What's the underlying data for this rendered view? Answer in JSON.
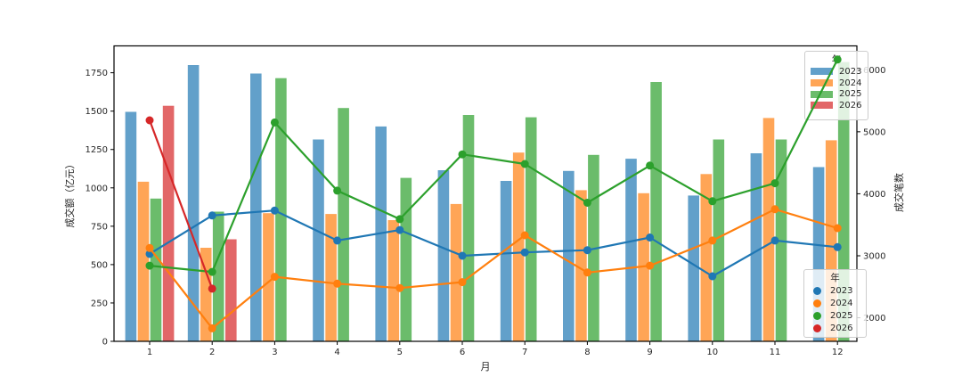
{
  "chart_data": {
    "type": "bar+line-dual-axis",
    "title": "",
    "xlabel": "月",
    "y_left": {
      "label": "成交额（亿元）",
      "ticks": [
        0,
        250,
        500,
        750,
        1000,
        1250,
        1500,
        1750
      ],
      "range": [
        0,
        1925
      ]
    },
    "y_right": {
      "label": "成交笔数",
      "ticks": [
        2000,
        3000,
        4000,
        5000,
        6000
      ],
      "range": [
        1620,
        6385
      ]
    },
    "categories": [
      1,
      2,
      3,
      4,
      5,
      6,
      7,
      8,
      9,
      10,
      11,
      12
    ],
    "bar_series": [
      {
        "name": "2023",
        "color": "#1f77b4",
        "values": [
          1495,
          1800,
          1745,
          1315,
          1400,
          1115,
          1045,
          1110,
          1190,
          950,
          1225,
          1135
        ]
      },
      {
        "name": "2024",
        "color": "#ff7f0e",
        "values": [
          1040,
          610,
          835,
          830,
          790,
          895,
          1230,
          985,
          965,
          1090,
          1455,
          1310
        ]
      },
      {
        "name": "2025",
        "color": "#2ca02c",
        "values": [
          930,
          845,
          1715,
          1520,
          1065,
          1475,
          1460,
          1215,
          1690,
          1315,
          1315,
          1820
        ]
      },
      {
        "name": "2026",
        "color": "#d62728",
        "values": [
          1535,
          665,
          null,
          null,
          null,
          null,
          null,
          null,
          null,
          null,
          null,
          null
        ]
      }
    ],
    "line_series": [
      {
        "name": "2023",
        "color": "#1f77b4",
        "values": [
          3030,
          3650,
          3730,
          3245,
          3415,
          3000,
          3055,
          3090,
          3295,
          2670,
          3245,
          3140
        ]
      },
      {
        "name": "2024",
        "color": "#ff7f0e",
        "values": [
          3125,
          1830,
          2660,
          2550,
          2480,
          2575,
          3330,
          2730,
          2840,
          3245,
          3750,
          3445
        ]
      },
      {
        "name": "2025",
        "color": "#2ca02c",
        "values": [
          2840,
          2740,
          5150,
          4050,
          3590,
          4635,
          4480,
          3855,
          4455,
          3880,
          4170,
          6165
        ]
      },
      {
        "name": "2026",
        "color": "#d62728",
        "values": [
          5185,
          2470,
          null,
          null,
          null,
          null,
          null,
          null,
          null,
          null,
          null,
          null
        ]
      }
    ],
    "legend_bars": {
      "title": "年"
    },
    "legend_lines": {
      "title": "年"
    },
    "bar_alpha": 0.7,
    "layout": {
      "grid": false,
      "legend_positions": [
        "upper right",
        "lower right"
      ]
    }
  }
}
